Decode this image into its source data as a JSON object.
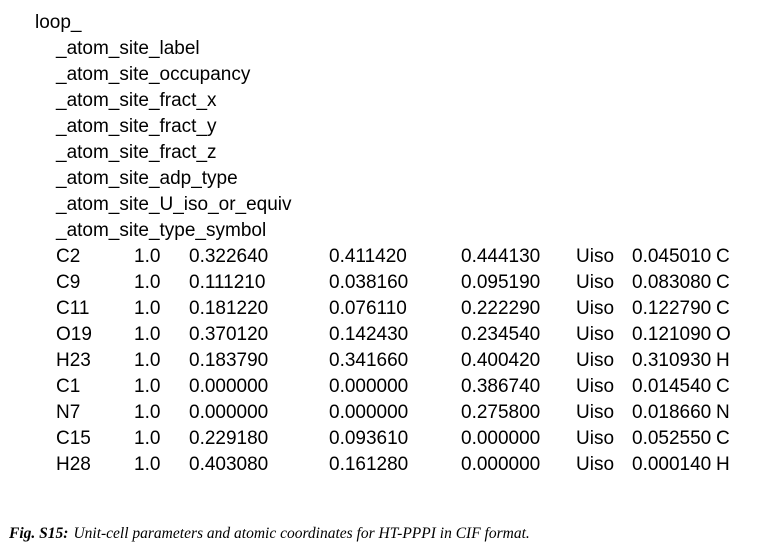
{
  "cif": {
    "loop_keyword": "loop_",
    "headers": [
      "_atom_site_label",
      "_atom_site_occupancy",
      "_atom_site_fract_x",
      "_atom_site_fract_y",
      "_atom_site_fract_z",
      "_atom_site_adp_type",
      "_atom_site_U_iso_or_equiv",
      "_atom_site_type_symbol"
    ],
    "columns": [
      "label",
      "occupancy",
      "fract_x",
      "fract_y",
      "fract_z",
      "adp_type",
      "U_iso_or_equiv",
      "type_symbol"
    ],
    "rows": [
      [
        "C2",
        "1.0",
        "0.322640",
        "0.411420",
        "0.444130",
        "Uiso",
        "0.045010",
        "C"
      ],
      [
        "C9",
        "1.0",
        "0.111210",
        "0.038160",
        "0.095190",
        "Uiso",
        "0.083080",
        "C"
      ],
      [
        "C11",
        "1.0",
        "0.181220",
        "0.076110",
        "0.222290",
        "Uiso",
        "0.122790",
        "C"
      ],
      [
        "O19",
        "1.0",
        "0.370120",
        "0.142430",
        "0.234540",
        "Uiso",
        "0.121090",
        "O"
      ],
      [
        "H23",
        "1.0",
        "0.183790",
        "0.341660",
        "0.400420",
        "Uiso",
        "0.310930",
        "H"
      ],
      [
        "C1",
        "1.0",
        "0.000000",
        "0.000000",
        "0.386740",
        "Uiso",
        "0.014540",
        "C"
      ],
      [
        "N7",
        "1.0",
        "0.000000",
        "0.000000",
        "0.275800",
        "Uiso",
        "0.018660",
        "N"
      ],
      [
        "C15",
        "1.0",
        "0.229180",
        "0.093610",
        "0.000000",
        "Uiso",
        "0.052550",
        "C"
      ],
      [
        "H28",
        "1.0",
        "0.403080",
        "0.161280",
        "0.000000",
        "Uiso",
        "0.000140",
        "H"
      ]
    ]
  },
  "caption": {
    "label": "Fig. S15:",
    "text": "Unit-cell parameters and atomic coordinates for HT-PPPI in CIF format."
  }
}
